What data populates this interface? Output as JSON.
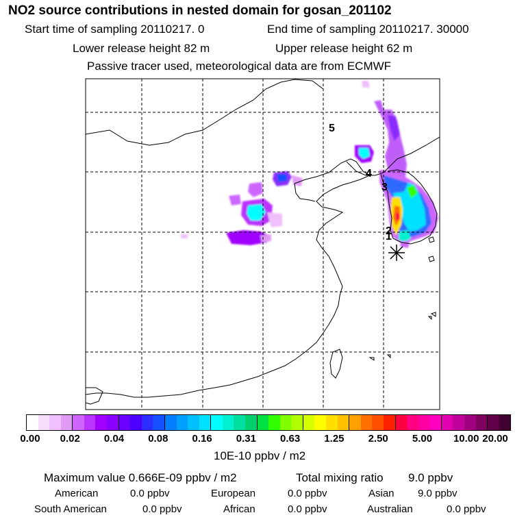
{
  "title": "NO2 source contributions in nested domain for gosan_201102",
  "line1a": "Start time of sampling 20110217.     0",
  "line1b": "End time of sampling 20110217. 30000",
  "line2a": "Lower release height   82 m",
  "line2b": "Upper release height   62 m",
  "line3": "Passive tracer used, meteorological data are from ECMWF",
  "map": {
    "markers": [
      "5",
      "4",
      "3",
      "2",
      "1"
    ],
    "receptor": "gosan-receptor-star"
  },
  "colorbar": {
    "ticks": [
      "0.00",
      "0.02",
      "0.04",
      "0.08",
      "0.16",
      "0.31",
      "0.63",
      "1.25",
      "2.50",
      "5.00",
      "10.00",
      "20.00"
    ],
    "colors": [
      "#ffffff",
      "#f6ddfb",
      "#efc0fb",
      "#e19af5",
      "#cc66ff",
      "#bb33ff",
      "#a000ff",
      "#8a00ff",
      "#6a00ff",
      "#4b00ff",
      "#2d2dff",
      "#1450ff",
      "#0080ff",
      "#00a0ff",
      "#00c0ff",
      "#00e0ff",
      "#00ffff",
      "#00f0d0",
      "#00e0a0",
      "#00d070",
      "#00e040",
      "#30ff00",
      "#80ff00",
      "#b0ff00",
      "#d8ff00",
      "#ffff00",
      "#ffe000",
      "#ffc000",
      "#ffa000",
      "#ff7000",
      "#ff5000",
      "#ff2000",
      "#ff0040",
      "#ff0080",
      "#ff00a0",
      "#ff00c0",
      "#e000b0",
      "#c0009a",
      "#a00080",
      "#800060",
      "#600048",
      "#400030"
    ],
    "unit": "10E-10 ppbv / m2"
  },
  "stats": {
    "max_label": "Maximum value  0.666E-09 ppbv / m2",
    "total_label": "Total mixing ratio",
    "total_value": "9.0 ppbv",
    "regions": [
      {
        "name": "American",
        "value": "0.0 ppbv"
      },
      {
        "name": "European",
        "value": "0.0 ppbv"
      },
      {
        "name": "Asian",
        "value": "9.0 ppbv"
      },
      {
        "name": "South American",
        "value": "0.0 ppbv"
      },
      {
        "name": "African",
        "value": "0.0 ppbv"
      },
      {
        "name": "Australian",
        "value": "0.0 ppbv"
      }
    ]
  }
}
